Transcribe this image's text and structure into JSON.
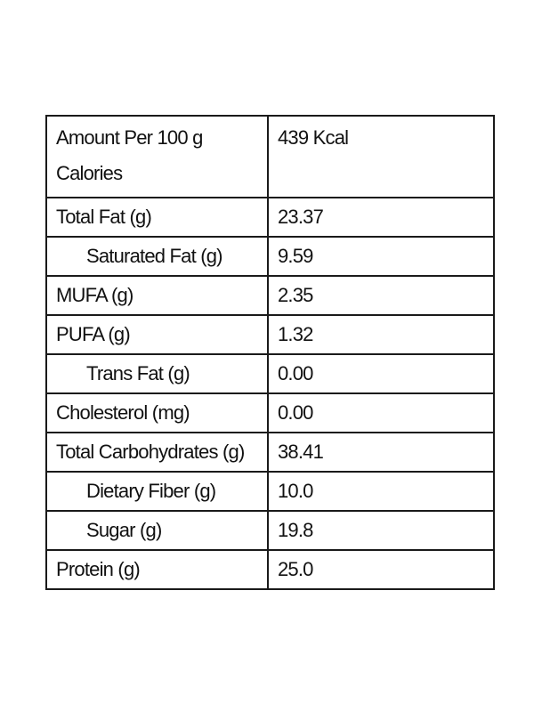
{
  "table": {
    "header": {
      "label_line1": "Amount Per 100 g",
      "label_line2": "Calories",
      "value": "439 Kcal"
    },
    "rows": [
      {
        "label": "Total Fat (g)",
        "value": "23.37",
        "indented": false
      },
      {
        "label": "Saturated Fat (g)",
        "value": "9.59",
        "indented": true
      },
      {
        "label": "MUFA (g)",
        "value": "2.35",
        "indented": false
      },
      {
        "label": "PUFA (g)",
        "value": "1.32",
        "indented": false
      },
      {
        "label": "Trans Fat (g)",
        "value": "0.00",
        "indented": true
      },
      {
        "label": "Cholesterol (mg)",
        "value": "0.00",
        "indented": false
      },
      {
        "label": "Total Carbohydrates  (g)",
        "value": "38.41",
        "indented": false
      },
      {
        "label": "Dietary Fiber (g)",
        "value": "10.0",
        "indented": true
      },
      {
        "label": "Sugar (g)",
        "value": "19.8",
        "indented": true
      },
      {
        "label": "Protein (g)",
        "value": "25.0",
        "indented": false
      }
    ]
  }
}
